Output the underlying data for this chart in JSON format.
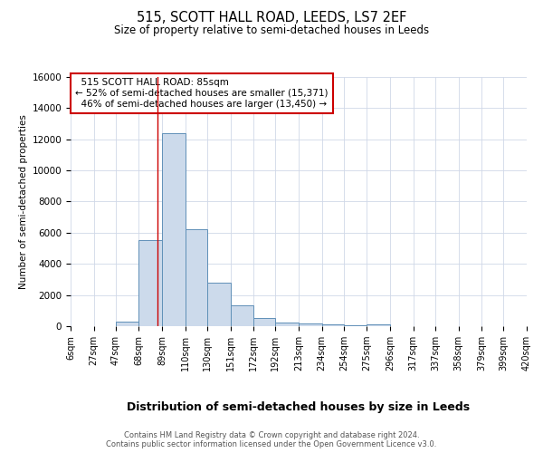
{
  "title": "515, SCOTT HALL ROAD, LEEDS, LS7 2EF",
  "subtitle": "Size of property relative to semi-detached houses in Leeds",
  "xlabel": "Distribution of semi-detached houses by size in Leeds",
  "ylabel": "Number of semi-detached properties",
  "footnote": "Contains HM Land Registry data © Crown copyright and database right 2024.\nContains public sector information licensed under the Open Government Licence v3.0.",
  "bar_color": "#ccdaeb",
  "bar_edge_color": "#6090b8",
  "property_sqm": 85,
  "property_label": "515 SCOTT HALL ROAD: 85sqm",
  "pct_smaller": 52,
  "count_smaller": 15371,
  "pct_larger": 46,
  "count_larger": 13450,
  "bin_edges": [
    6,
    27,
    47,
    68,
    89,
    110,
    130,
    151,
    172,
    192,
    213,
    234,
    254,
    275,
    296,
    317,
    337,
    358,
    379,
    399,
    420
  ],
  "bin_labels": [
    "6sqm",
    "27sqm",
    "47sqm",
    "68sqm",
    "89sqm",
    "110sqm",
    "130sqm",
    "151sqm",
    "172sqm",
    "192sqm",
    "213sqm",
    "234sqm",
    "254sqm",
    "275sqm",
    "296sqm",
    "317sqm",
    "337sqm",
    "358sqm",
    "379sqm",
    "399sqm",
    "420sqm"
  ],
  "bar_heights": [
    0,
    0,
    300,
    5500,
    12400,
    6200,
    2800,
    1350,
    550,
    250,
    150,
    100,
    75,
    100,
    0,
    0,
    0,
    0,
    0,
    0
  ],
  "ylim": [
    0,
    16000
  ],
  "yticks": [
    0,
    2000,
    4000,
    6000,
    8000,
    10000,
    12000,
    14000,
    16000
  ],
  "red_line_color": "#cc0000",
  "annotation_box_color": "#cc0000",
  "annotation_bg_color": "#ffffff",
  "grid_color": "#d0d8e8"
}
